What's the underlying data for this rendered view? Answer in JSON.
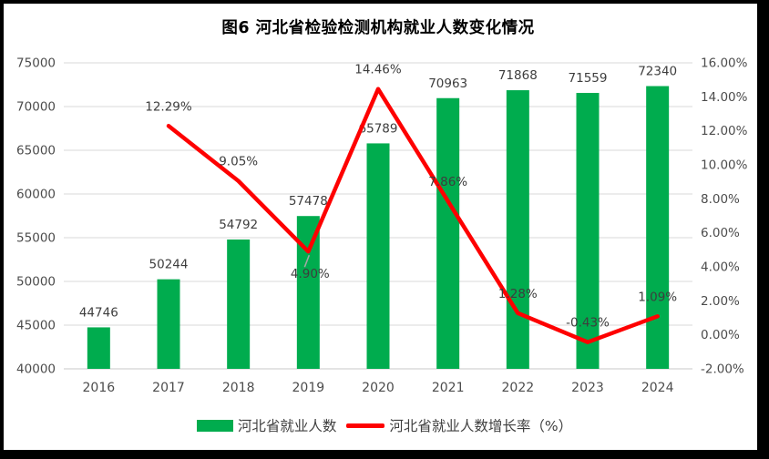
{
  "chart_data": {
    "type": "bar+line combo",
    "title": "图6 河北省检验检测机构就业人数变化情况",
    "categories": [
      "2016",
      "2017",
      "2018",
      "2019",
      "2020",
      "2021",
      "2022",
      "2023",
      "2024"
    ],
    "series": [
      {
        "name": "河北省就业人数",
        "type": "bar",
        "axis": "left",
        "color": "#00AC4E",
        "values": [
          44746,
          50244,
          54792,
          57478,
          65789,
          70963,
          71868,
          71559,
          72340
        ],
        "labels": [
          "44746",
          "50244",
          "54792",
          "57478",
          "65789",
          "70963",
          "71868",
          "71559",
          "72340"
        ]
      },
      {
        "name": "河北省就业人数增长率（%）",
        "type": "line",
        "axis": "right",
        "color": "#FE0000",
        "values": [
          null,
          12.29,
          9.05,
          4.9,
          14.46,
          7.86,
          1.28,
          -0.43,
          1.09
        ],
        "labels": [
          null,
          "12.29%",
          "9.05%",
          "4.90%",
          "14.46%",
          "7.86%",
          "1.28%",
          "-0.43%",
          "1.09%"
        ],
        "label_positions": [
          null,
          "above",
          "above",
          "below-leader",
          "above",
          "above",
          "above",
          "above",
          "above"
        ]
      }
    ],
    "left_axis": {
      "min": 40000,
      "max": 75000,
      "step": 5000,
      "ticks": [
        "75000",
        "70000",
        "65000",
        "60000",
        "55000",
        "50000",
        "45000",
        "40000"
      ]
    },
    "right_axis": {
      "min": -2,
      "max": 16,
      "step": 2,
      "ticks": [
        "16.00%",
        "14.00%",
        "12.00%",
        "10.00%",
        "8.00%",
        "6.00%",
        "4.00%",
        "2.00%",
        "0.00%",
        "-2.00%"
      ]
    },
    "grid": true,
    "legend_position": "bottom",
    "colors": {
      "bar": "#00AC4E",
      "line": "#FE0000",
      "grid": "#D9D9D9",
      "axis_line": "#C9C9C9",
      "tick_text": "#4C4C4C",
      "data_label": "#3D3D3D",
      "leader": "#A6A6A6",
      "title": "#000000",
      "frame": "#000000",
      "background": "#FFFFFF"
    }
  }
}
